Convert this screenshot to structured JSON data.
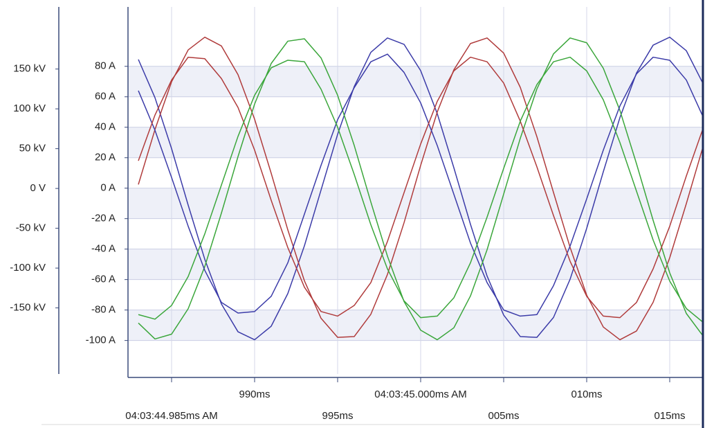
{
  "chart_data": {
    "type": "line",
    "x": [
      983,
      984,
      985,
      986,
      987,
      988,
      989,
      990,
      991,
      992,
      993,
      994,
      995,
      996,
      997,
      998,
      999,
      1000,
      1001,
      1002,
      1003,
      1004,
      1005,
      1006,
      1007,
      1008,
      1009,
      1010,
      1011,
      1012,
      1013,
      1014,
      1015,
      1016,
      1017
    ],
    "xlim": [
      982.375,
      1016.958
    ],
    "xticks": [
      {
        "value": 985,
        "label": "04:03:44.985ms AM"
      },
      {
        "value": 990,
        "label": "990ms"
      },
      {
        "value": 995,
        "label": "995ms"
      },
      {
        "value": 1000,
        "label": "04:03:45.000ms AM"
      },
      {
        "value": 1005,
        "label": "005ms"
      },
      {
        "value": 1010,
        "label": "010ms"
      },
      {
        "value": 1015,
        "label": "015ms"
      }
    ],
    "ylim": [
      -122,
      119
    ],
    "yticks": [
      {
        "value": -100,
        "label": "-100 A"
      },
      {
        "value": -80,
        "label": "-80 A"
      },
      {
        "value": -60,
        "label": "-60 A"
      },
      {
        "value": -40,
        "label": "-40 A"
      },
      {
        "value": -20,
        "label": "-20 A"
      },
      {
        "value": 0,
        "label": "0 A"
      },
      {
        "value": 20,
        "label": "20 A"
      },
      {
        "value": 40,
        "label": "40 A"
      },
      {
        "value": 60,
        "label": "60 A"
      },
      {
        "value": 80,
        "label": "80 A"
      }
    ],
    "y2lim": [
      -233,
      228
    ],
    "y2ticks": [
      {
        "value": -150,
        "label": "-150 kV"
      },
      {
        "value": -100,
        "label": "-100 kV"
      },
      {
        "value": -50,
        "label": "-50 kV"
      },
      {
        "value": 0,
        "label": "0 V"
      },
      {
        "value": 50,
        "label": "50 kV"
      },
      {
        "value": 100,
        "label": "100 kV"
      },
      {
        "value": 150,
        "label": "150 kV"
      }
    ],
    "grid": true,
    "series": [
      {
        "color": "#3b3ba8",
        "axis": "y2",
        "values": [
          162,
          114,
          50,
          -21,
          -89,
          -145,
          -180,
          -190,
          -173,
          -132,
          -72,
          -2,
          68,
          128,
          171,
          189,
          181,
          148,
          94,
          26,
          -45,
          -110,
          -159,
          -186,
          -187,
          -162,
          -114,
          -50,
          21,
          89,
          145,
          180,
          190,
          173,
          132
        ]
      },
      {
        "color": "#b03b3b",
        "axis": "y2",
        "values": [
          5,
          74,
          134,
          174,
          190,
          179,
          143,
          87,
          19,
          -52,
          -116,
          -163,
          -187,
          -186,
          -158,
          -108,
          -43,
          29,
          96,
          149,
          182,
          189,
          170,
          127,
          65,
          -5,
          -74,
          -134,
          -174,
          -190,
          -179,
          -143,
          -87,
          -19,
          52
        ]
      },
      {
        "color": "#3aa63a",
        "axis": "y2",
        "values": [
          -169,
          -189,
          -183,
          -151,
          -98,
          -31,
          40,
          106,
          157,
          185,
          188,
          164,
          117,
          54,
          -17,
          -85,
          -142,
          -178,
          -190,
          -175,
          -135,
          -77,
          -7,
          63,
          125,
          169,
          189,
          183,
          151,
          98,
          31,
          -40,
          -106,
          -157,
          -185
        ]
      },
      {
        "color": "#3b3ba8",
        "values": [
          64,
          38,
          7,
          -25,
          -54,
          -75,
          -82,
          -81,
          -71,
          -49,
          -17,
          15,
          45,
          66,
          83,
          88,
          76,
          56,
          28,
          -4,
          -36,
          -62,
          -80,
          -84,
          -83,
          -64,
          -38,
          -7,
          25,
          54,
          75,
          86,
          84,
          71,
          47
        ]
      },
      {
        "color": "#b03b3b",
        "values": [
          18,
          48,
          71,
          86,
          85,
          72,
          53,
          25,
          -8,
          -39,
          -65,
          -81,
          -84,
          -77,
          -62,
          -35,
          -3,
          29,
          57,
          77,
          86,
          83,
          69,
          44,
          14,
          -18,
          -48,
          -71,
          -84,
          -85,
          -75,
          -53,
          -25,
          8,
          39
        ]
      },
      {
        "color": "#3aa63a",
        "values": [
          -83,
          -86,
          -77,
          -58,
          -30,
          2,
          34,
          61,
          79,
          84,
          83,
          65,
          40,
          9,
          -24,
          -53,
          -74,
          -85,
          -84,
          -72,
          -49,
          -19,
          13,
          44,
          68,
          83,
          86,
          77,
          58,
          30,
          -2,
          -34,
          -61,
          -79,
          -88
        ]
      }
    ]
  }
}
